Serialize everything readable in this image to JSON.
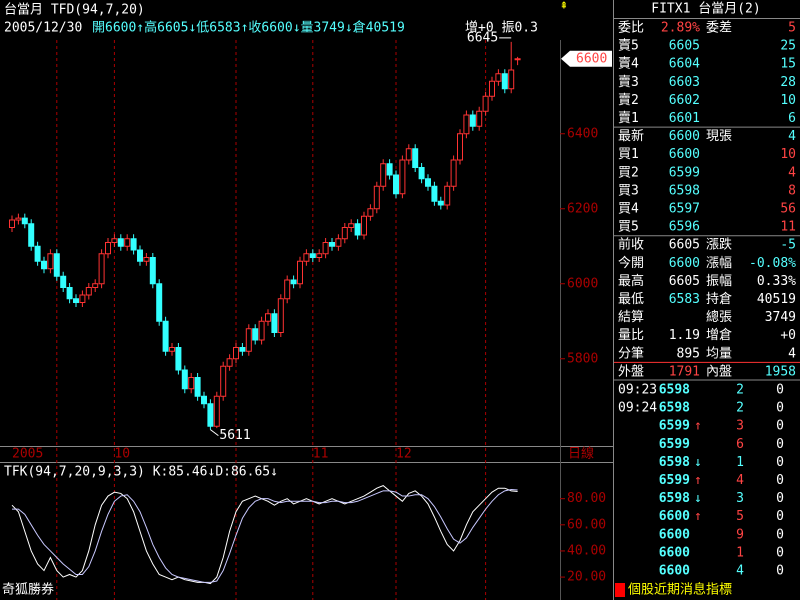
{
  "chart_data": {
    "type": "candlestick",
    "title": "台當月 TFD(94,7,20)",
    "date": "2005/12/30",
    "quote": "開6600↑高6605↓低6583↑收6600↓量3749↓倉40519",
    "quote_extra": "增+0 振0.3",
    "ohlc": [
      [
        6150,
        6182,
        6138,
        6170
      ],
      [
        6170,
        6187,
        6158,
        6175
      ],
      [
        6175,
        6187,
        6148,
        6160
      ],
      [
        6160,
        6172,
        6088,
        6100
      ],
      [
        6100,
        6112,
        6048,
        6060
      ],
      [
        6060,
        6072,
        6028,
        6040
      ],
      [
        6040,
        6092,
        6028,
        6080
      ],
      [
        6080,
        6092,
        6008,
        6020
      ],
      [
        6020,
        6032,
        5978,
        5990
      ],
      [
        5990,
        6002,
        5948,
        5960
      ],
      [
        5960,
        5972,
        5938,
        5950
      ],
      [
        5950,
        5982,
        5938,
        5970
      ],
      [
        5970,
        6002,
        5958,
        5990
      ],
      [
        5990,
        6012,
        5978,
        6000
      ],
      [
        6000,
        6092,
        5988,
        6080
      ],
      [
        6080,
        6122,
        6068,
        6110
      ],
      [
        6110,
        6132,
        6098,
        6120
      ],
      [
        6120,
        6132,
        6088,
        6100
      ],
      [
        6100,
        6132,
        6088,
        6120
      ],
      [
        6120,
        6132,
        6078,
        6090
      ],
      [
        6090,
        6102,
        6048,
        6060
      ],
      [
        6060,
        6082,
        6048,
        6070
      ],
      [
        6070,
        6082,
        5988,
        6000
      ],
      [
        6000,
        6012,
        5888,
        5900
      ],
      [
        5900,
        5912,
        5808,
        5820
      ],
      [
        5820,
        5842,
        5808,
        5830
      ],
      [
        5830,
        5842,
        5758,
        5770
      ],
      [
        5770,
        5782,
        5708,
        5720
      ],
      [
        5720,
        5762,
        5708,
        5750
      ],
      [
        5750,
        5762,
        5688,
        5700
      ],
      [
        5700,
        5712,
        5668,
        5680
      ],
      [
        5680,
        5692,
        5611,
        5620
      ],
      [
        5620,
        5712,
        5615,
        5700
      ],
      [
        5700,
        5792,
        5688,
        5780
      ],
      [
        5780,
        5812,
        5768,
        5800
      ],
      [
        5800,
        5842,
        5788,
        5830
      ],
      [
        5830,
        5842,
        5808,
        5820
      ],
      [
        5820,
        5892,
        5808,
        5880
      ],
      [
        5880,
        5892,
        5838,
        5850
      ],
      [
        5850,
        5912,
        5838,
        5900
      ],
      [
        5900,
        5932,
        5888,
        5920
      ],
      [
        5920,
        5932,
        5858,
        5870
      ],
      [
        5870,
        5972,
        5858,
        5960
      ],
      [
        5960,
        6022,
        5948,
        6010
      ],
      [
        6010,
        6022,
        5988,
        6000
      ],
      [
        6000,
        6072,
        5988,
        6060
      ],
      [
        6060,
        6092,
        6048,
        6080
      ],
      [
        6080,
        6092,
        6058,
        6070
      ],
      [
        6070,
        6092,
        6058,
        6080
      ],
      [
        6080,
        6122,
        6068,
        6110
      ],
      [
        6110,
        6122,
        6088,
        6100
      ],
      [
        6100,
        6132,
        6088,
        6120
      ],
      [
        6120,
        6162,
        6108,
        6150
      ],
      [
        6150,
        6172,
        6138,
        6160
      ],
      [
        6160,
        6172,
        6118,
        6130
      ],
      [
        6130,
        6192,
        6118,
        6180
      ],
      [
        6180,
        6212,
        6168,
        6200
      ],
      [
        6200,
        6272,
        6188,
        6260
      ],
      [
        6260,
        6332,
        6248,
        6320
      ],
      [
        6320,
        6332,
        6278,
        6290
      ],
      [
        6290,
        6302,
        6228,
        6240
      ],
      [
        6240,
        6342,
        6228,
        6330
      ],
      [
        6330,
        6372,
        6318,
        6360
      ],
      [
        6360,
        6372,
        6298,
        6310
      ],
      [
        6310,
        6322,
        6268,
        6280
      ],
      [
        6280,
        6292,
        6248,
        6260
      ],
      [
        6260,
        6272,
        6208,
        6220
      ],
      [
        6220,
        6232,
        6198,
        6210
      ],
      [
        6210,
        6272,
        6198,
        6260
      ],
      [
        6260,
        6342,
        6248,
        6330
      ],
      [
        6330,
        6412,
        6318,
        6400
      ],
      [
        6400,
        6462,
        6388,
        6450
      ],
      [
        6450,
        6462,
        6408,
        6420
      ],
      [
        6420,
        6472,
        6408,
        6460
      ],
      [
        6460,
        6512,
        6448,
        6500
      ],
      [
        6500,
        6552,
        6488,
        6540
      ],
      [
        6540,
        6572,
        6528,
        6560
      ],
      [
        6560,
        6572,
        6508,
        6520
      ],
      [
        6520,
        6645,
        6508,
        6570
      ],
      [
        6600,
        6605,
        6583,
        6600
      ]
    ],
    "ylim": [
      5570,
      6650
    ],
    "yticks": [
      5800,
      6000,
      6200,
      6400
    ],
    "last_price": 6600,
    "annotations": [
      {
        "text": "6645",
        "index": 78,
        "value": 6645
      },
      {
        "text": "5611",
        "index": 31,
        "value": 5611
      }
    ],
    "xticks": [
      {
        "value": 0,
        "label": "2005"
      },
      {
        "value": 16,
        "label": "10"
      },
      {
        "value": 47,
        "label": "11"
      },
      {
        "value": 60,
        "label": "12"
      }
    ],
    "period": "日線",
    "indicator": {
      "title": "TFK(94,7,20,9,3,3) K:85.46↓D:86.65↓",
      "ylim": [
        4,
        105
      ],
      "yticks": [
        {
          "value": 20,
          "label": "20.00"
        },
        {
          "value": 40,
          "label": "40.00"
        },
        {
          "value": 60,
          "label": "60.00"
        },
        {
          "value": 80,
          "label": "80.00"
        }
      ],
      "series": [
        {
          "name": "K",
          "color": "#ffffff",
          "values": [
            75,
            70,
            55,
            40,
            30,
            25,
            35,
            25,
            20,
            22,
            20,
            25,
            40,
            60,
            75,
            82,
            85,
            84,
            80,
            70,
            55,
            40,
            30,
            22,
            20,
            18,
            20,
            18,
            17,
            16,
            16,
            15,
            20,
            35,
            55,
            70,
            78,
            80,
            82,
            80,
            78,
            75,
            78,
            80,
            76,
            78,
            80,
            78,
            76,
            78,
            80,
            78,
            76,
            78,
            80,
            82,
            85,
            88,
            90,
            86,
            82,
            78,
            84,
            86,
            82,
            76,
            66,
            55,
            45,
            40,
            48,
            60,
            70,
            75,
            80,
            85,
            88,
            88,
            86,
            85.46
          ]
        },
        {
          "name": "D",
          "color": "#c8c8ff",
          "values": [
            72,
            72,
            68,
            60,
            52,
            45,
            40,
            35,
            30,
            26,
            22,
            22,
            28,
            40,
            55,
            68,
            78,
            82,
            83,
            78,
            70,
            58,
            45,
            35,
            27,
            22,
            20,
            19,
            18,
            17,
            16,
            16,
            17,
            25,
            38,
            52,
            65,
            73,
            78,
            80,
            80,
            78,
            77,
            78,
            78,
            78,
            78,
            78,
            77,
            77,
            78,
            78,
            77,
            77,
            78,
            80,
            82,
            84,
            86,
            86,
            85,
            82,
            82,
            83,
            83,
            80,
            74,
            66,
            57,
            49,
            46,
            50,
            58,
            65,
            72,
            78,
            83,
            86,
            87,
            86.65
          ]
        }
      ]
    },
    "brand": "奇狐勝券"
  },
  "quote_board": {
    "title": "FITX1 台當月(2)",
    "rows": [
      [
        "委比",
        "2.89%",
        "委差",
        "5"
      ],
      [
        "賣5",
        "6605",
        null,
        "25"
      ],
      [
        "賣4",
        "6604",
        null,
        "15"
      ],
      [
        "賣3",
        "6603",
        null,
        "28"
      ],
      [
        "賣2",
        "6602",
        null,
        "10"
      ],
      [
        "賣1",
        "6601",
        null,
        "6"
      ],
      [
        "最新",
        "6600",
        "現張",
        "4"
      ],
      [
        "買1",
        "6600",
        null,
        "10"
      ],
      [
        "買2",
        "6599",
        null,
        "4"
      ],
      [
        "買3",
        "6598",
        null,
        "8"
      ],
      [
        "買4",
        "6597",
        null,
        "56"
      ],
      [
        "買5",
        "6596",
        null,
        "11"
      ],
      [
        "前收",
        "6605",
        "漲跌",
        "-5"
      ],
      [
        "今開",
        "6600",
        "漲幅",
        "-0.08%"
      ],
      [
        "最高",
        "6605",
        "振幅",
        "0.33%"
      ],
      [
        "最低",
        "6583",
        "持倉",
        "40519"
      ],
      [
        "結算",
        null,
        "總張",
        "3749"
      ],
      [
        "量比",
        "1.19",
        "增倉",
        "+0"
      ],
      [
        "分筆",
        "895",
        "均量",
        "4"
      ],
      [
        "外盤",
        "1791",
        "內盤",
        "1958"
      ]
    ],
    "ticks": [
      [
        "09:23",
        "6598",
        null,
        "2",
        "0"
      ],
      [
        "09:24",
        "6598",
        null,
        "2",
        "0"
      ],
      [
        null,
        "6599",
        "↑",
        "3",
        "0"
      ],
      [
        null,
        "6599",
        null,
        "6",
        "0"
      ],
      [
        null,
        "6598",
        "↓",
        "1",
        "0"
      ],
      [
        null,
        "6599",
        "↑",
        "4",
        "0"
      ],
      [
        null,
        "6598",
        "↓",
        "3",
        "0"
      ],
      [
        null,
        "6600",
        "↑",
        "5",
        "0"
      ],
      [
        null,
        "6600",
        null,
        "9",
        "0"
      ],
      [
        null,
        "6600",
        null,
        "1",
        "0"
      ],
      [
        null,
        "6600",
        null,
        "4",
        "0"
      ]
    ],
    "ticker": "個股近期消息指標"
  }
}
